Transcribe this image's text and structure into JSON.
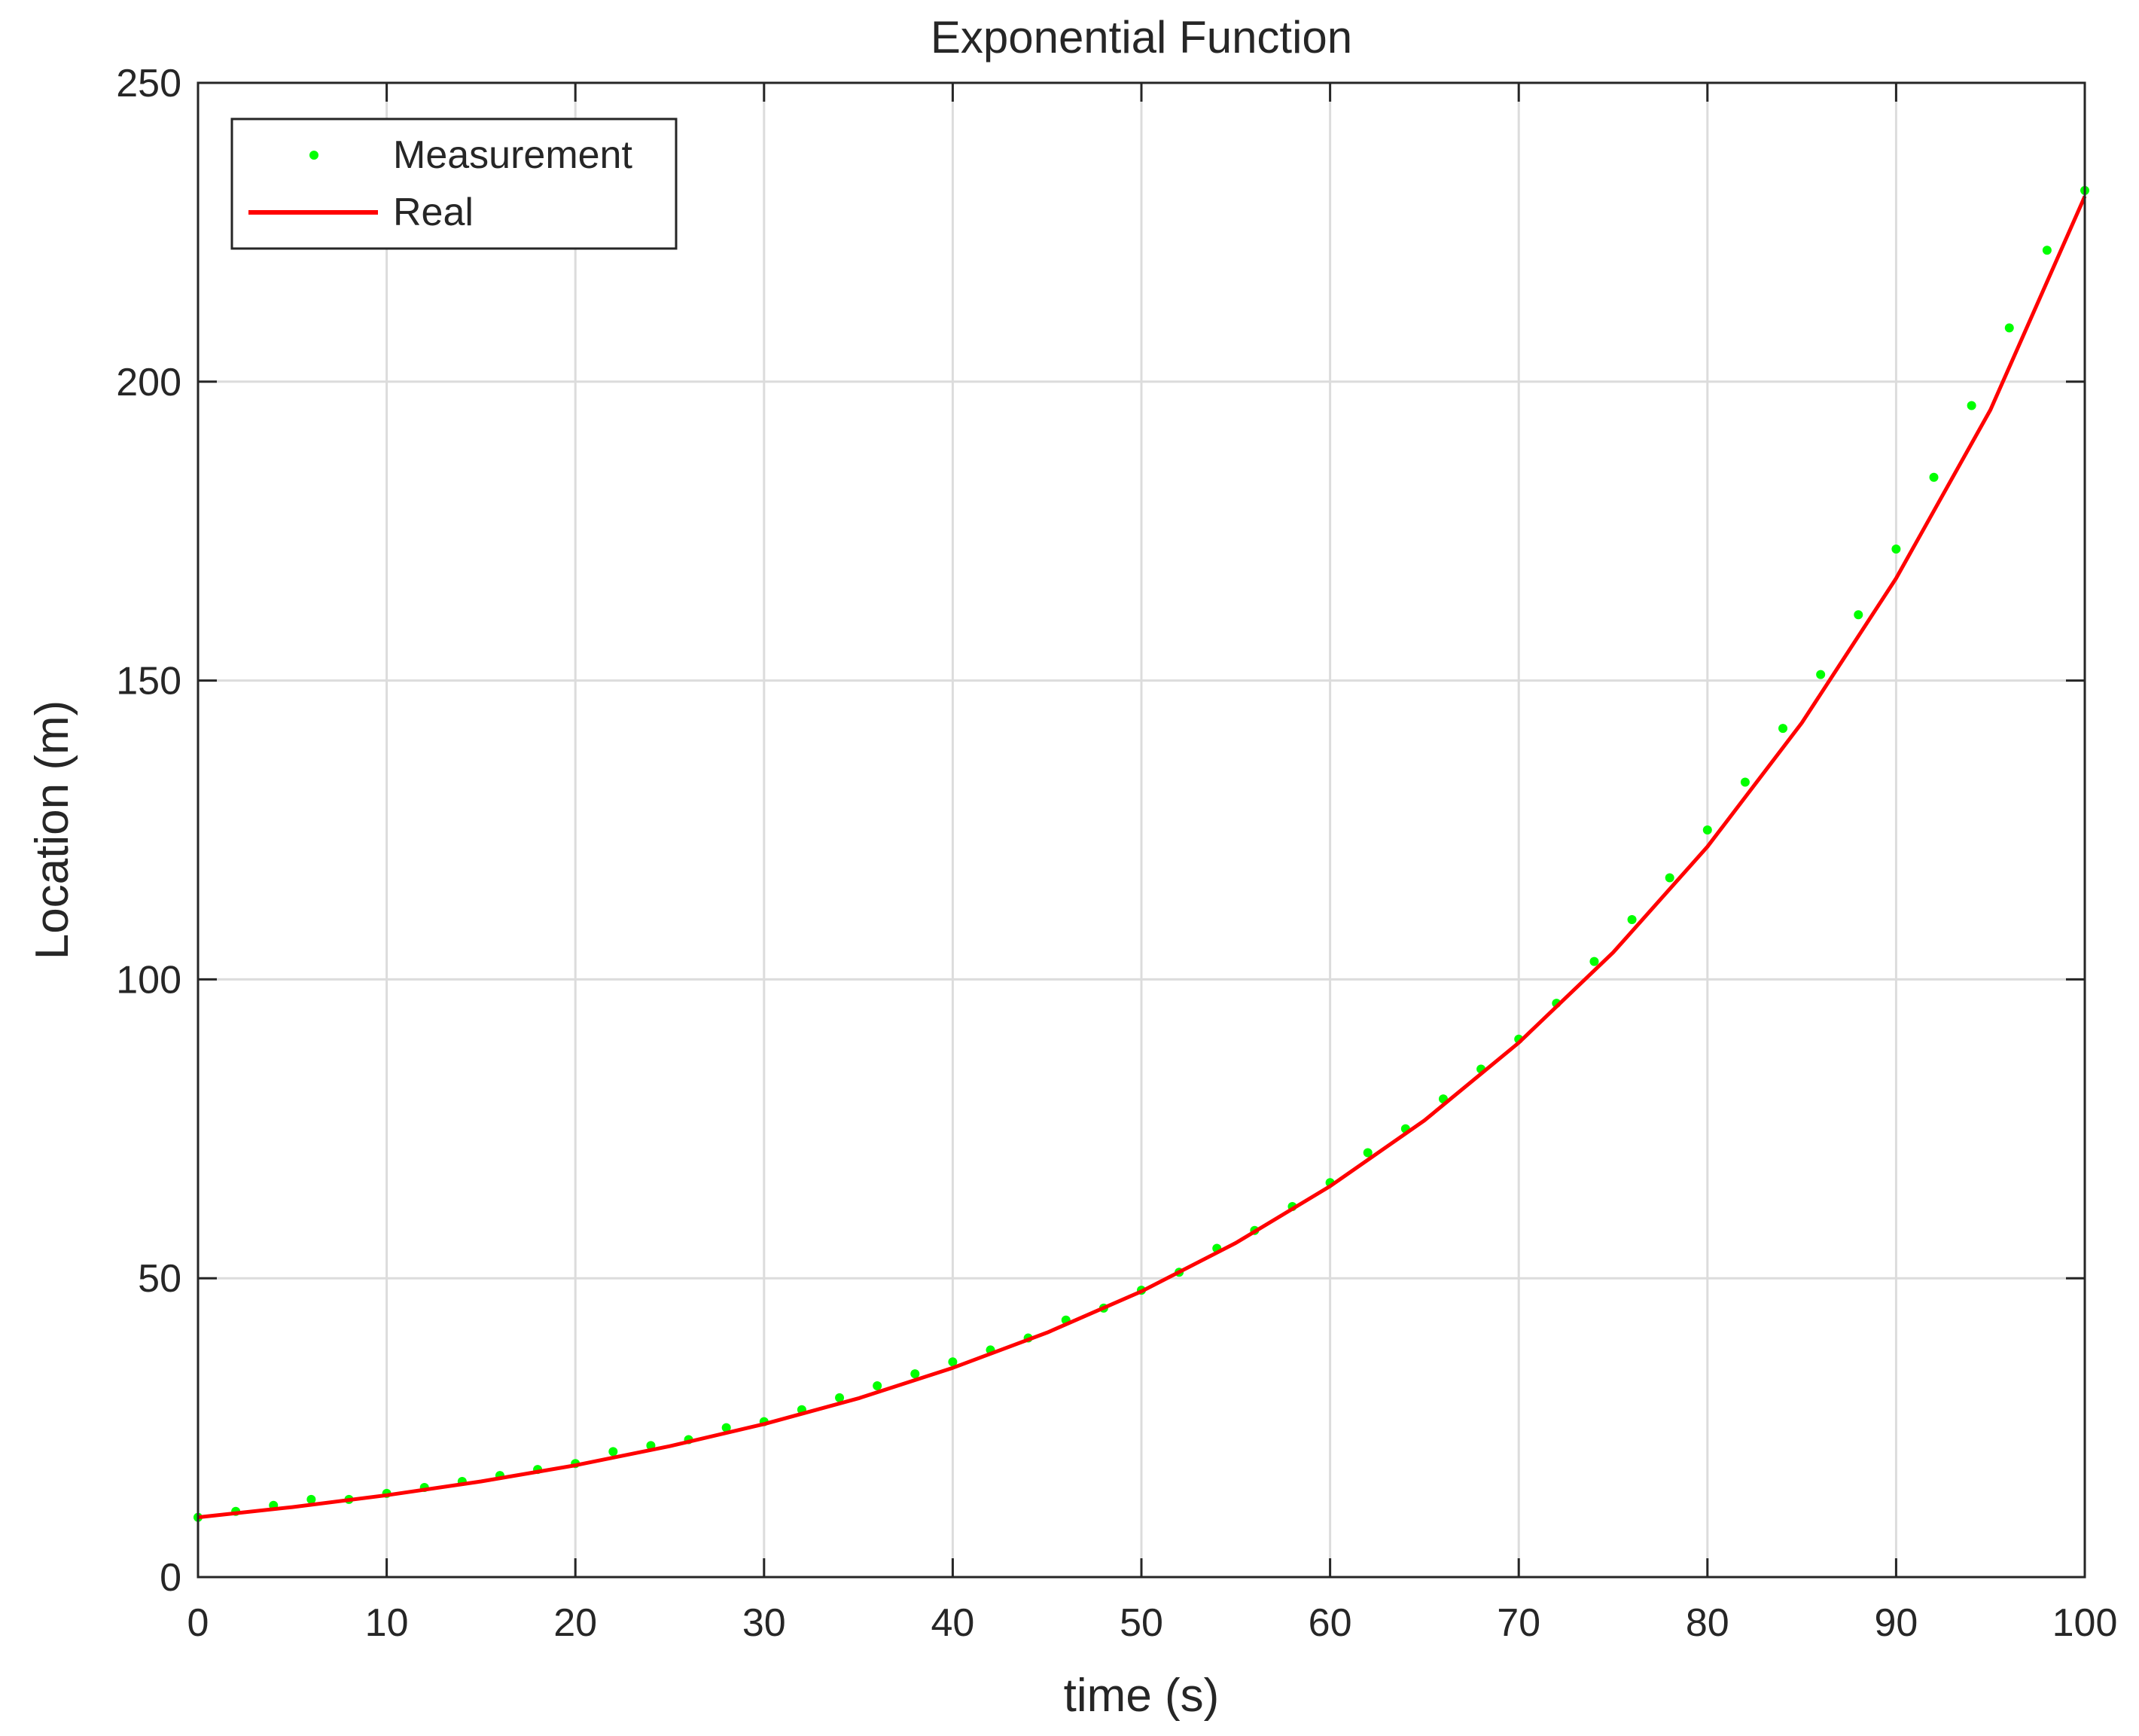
{
  "chart_data": {
    "type": "scatter",
    "title": "Exponential Function",
    "xlabel": "time (s)",
    "ylabel": "Location (m)",
    "xlim": [
      0,
      100
    ],
    "ylim": [
      0,
      250
    ],
    "xticks": [
      0,
      10,
      20,
      30,
      40,
      50,
      60,
      70,
      80,
      90,
      100
    ],
    "yticks": [
      0,
      50,
      100,
      150,
      200,
      250
    ],
    "x_tick_labels": [
      "0",
      "10",
      "20",
      "30",
      "40",
      "50",
      "60",
      "70",
      "80",
      "90",
      "100"
    ],
    "y_tick_labels": [
      "0",
      "50",
      "100",
      "150",
      "200",
      "250"
    ],
    "grid": true,
    "legend_position": "top-left",
    "series": [
      {
        "name": "Measurement",
        "kind": "scatter",
        "color": "#00ff00",
        "x": [
          0,
          2,
          4,
          6,
          8,
          10,
          12,
          14,
          16,
          18,
          20,
          22,
          24,
          26,
          28,
          30,
          32,
          34,
          36,
          38,
          40,
          42,
          44,
          46,
          48,
          50,
          52,
          54,
          56,
          58,
          60,
          62,
          64,
          66,
          68,
          70,
          72,
          74,
          76,
          78,
          80,
          82,
          84,
          86,
          88,
          90,
          92,
          94,
          96,
          98,
          100
        ],
        "y": [
          10,
          11,
          12,
          13,
          13,
          14,
          15,
          16,
          17,
          18,
          19,
          21,
          22,
          23,
          25,
          26,
          28,
          30,
          32,
          34,
          36,
          38,
          40,
          43,
          45,
          48,
          51,
          55,
          58,
          62,
          66,
          71,
          75,
          80,
          85,
          90,
          96,
          103,
          110,
          117,
          125,
          133,
          142,
          151,
          161,
          172,
          184,
          196,
          209,
          222,
          232
        ]
      },
      {
        "name": "Real",
        "kind": "line",
        "color": "#ff0000",
        "x": [
          0,
          5,
          10,
          15,
          20,
          25,
          30,
          35,
          40,
          45,
          50,
          55,
          60,
          65,
          70,
          75,
          80,
          85,
          90,
          95,
          100
        ],
        "y": [
          10,
          11.7,
          13.7,
          16.0,
          18.7,
          21.9,
          25.6,
          29.9,
          35.0,
          40.9,
          47.8,
          55.9,
          65.4,
          76.4,
          89.4,
          104.5,
          122.2,
          142.9,
          167.1,
          195.3,
          231
        ]
      }
    ]
  }
}
